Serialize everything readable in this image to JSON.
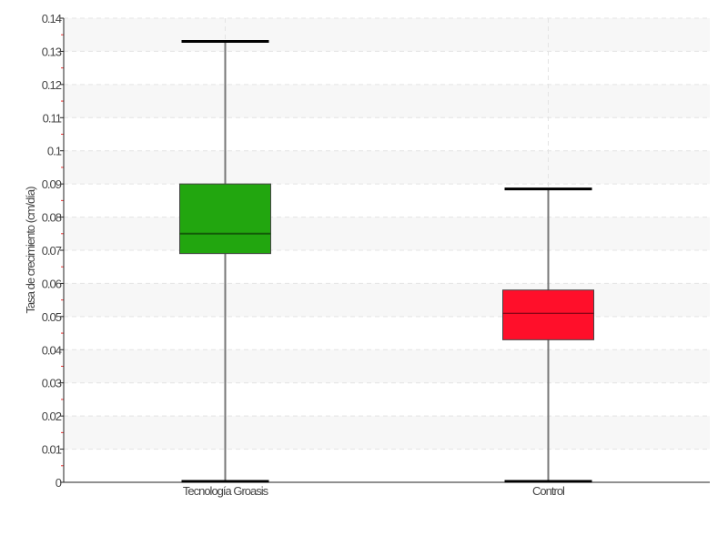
{
  "chart_data": {
    "type": "box",
    "title": "",
    "xlabel": "",
    "ylabel": "Tasa de crecimiento (cm/día)",
    "ylim": [
      0,
      0.14
    ],
    "yticks": [
      "0",
      "0.01",
      "0.02",
      "0.03",
      "0.04",
      "0.05",
      "0.06",
      "0.07",
      "0.08",
      "0.09",
      "0.1",
      "0.11",
      "0.12",
      "0.13",
      "0.14"
    ],
    "grid": true,
    "categories": [
      "Tecnología Groasis",
      "Control"
    ],
    "boxes": [
      {
        "name": "Tecnología Groasis",
        "min": 0.0,
        "q1": 0.069,
        "median": 0.075,
        "q3": 0.09,
        "max": 0.133,
        "color": "#22a60f"
      },
      {
        "name": "Control",
        "min": 0.0,
        "q1": 0.043,
        "median": 0.051,
        "q3": 0.058,
        "max": 0.0885,
        "color": "#ff0f2a"
      }
    ]
  }
}
